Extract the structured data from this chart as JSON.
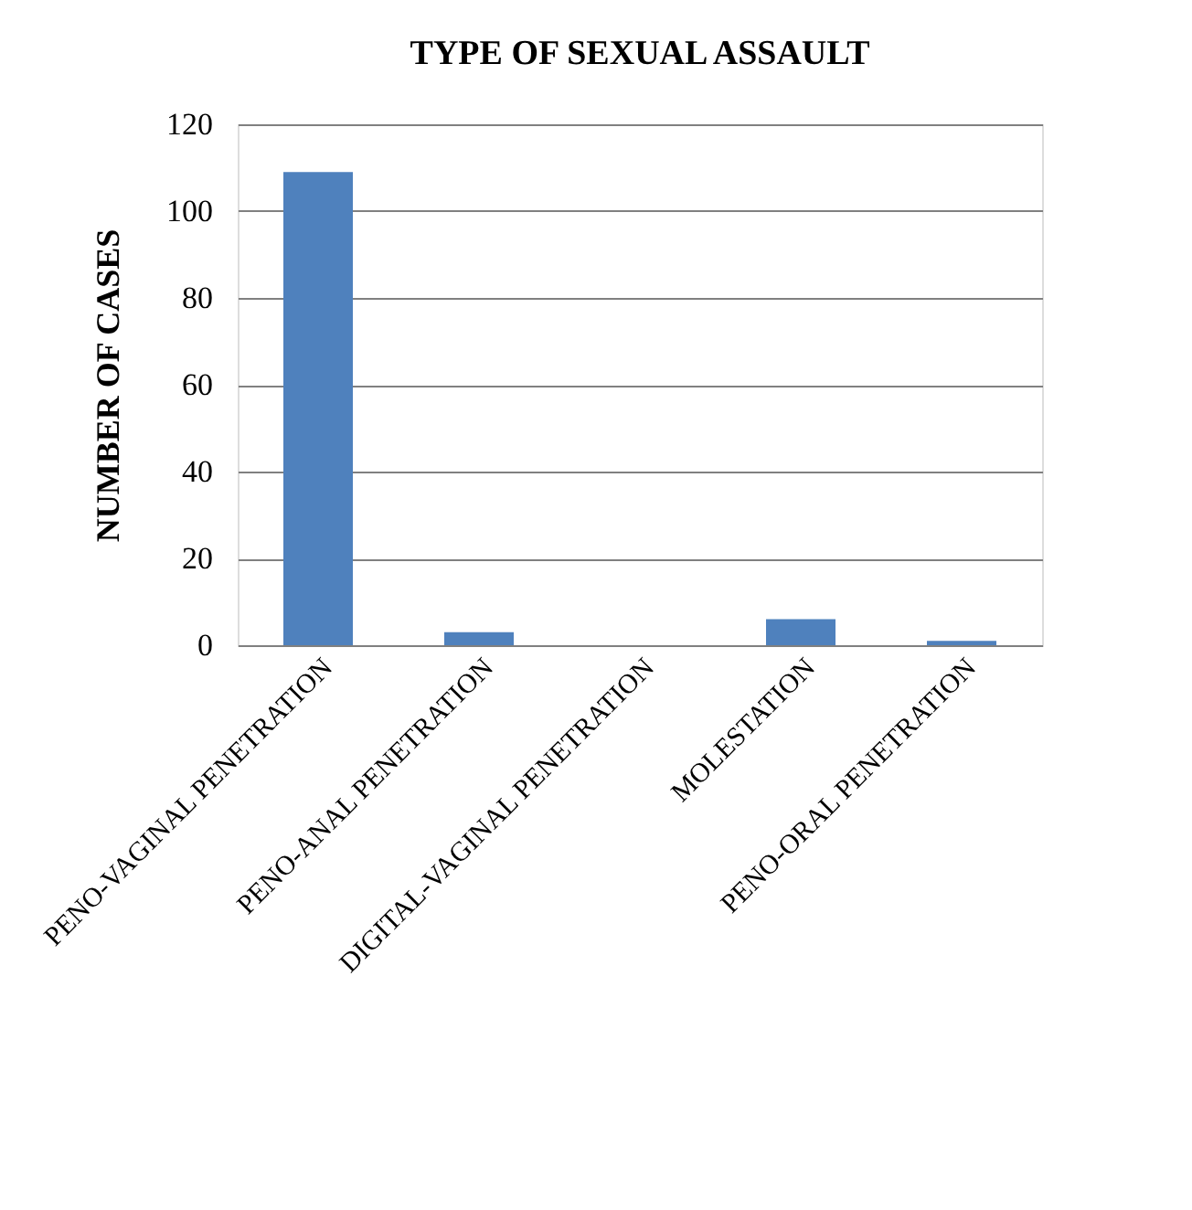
{
  "chart_data": {
    "type": "bar",
    "title": "TYPE OF SEXUAL ASSAULT",
    "ylabel": "NUMBER OF CASES",
    "categories": [
      "PENO-VAGINAL PENETRATION",
      "PENO-ANAL PENETRATION",
      "DIGITAL-VAGINAL PENETRATION",
      "MOLESTATION",
      "PENO-ORAL PENETRATION"
    ],
    "values": [
      109,
      3,
      0,
      6,
      1
    ],
    "color": "#4f81bd",
    "ylim": [
      0,
      120
    ],
    "yticks": [
      0,
      20,
      40,
      60,
      80,
      100,
      120
    ],
    "grid": "y"
  }
}
